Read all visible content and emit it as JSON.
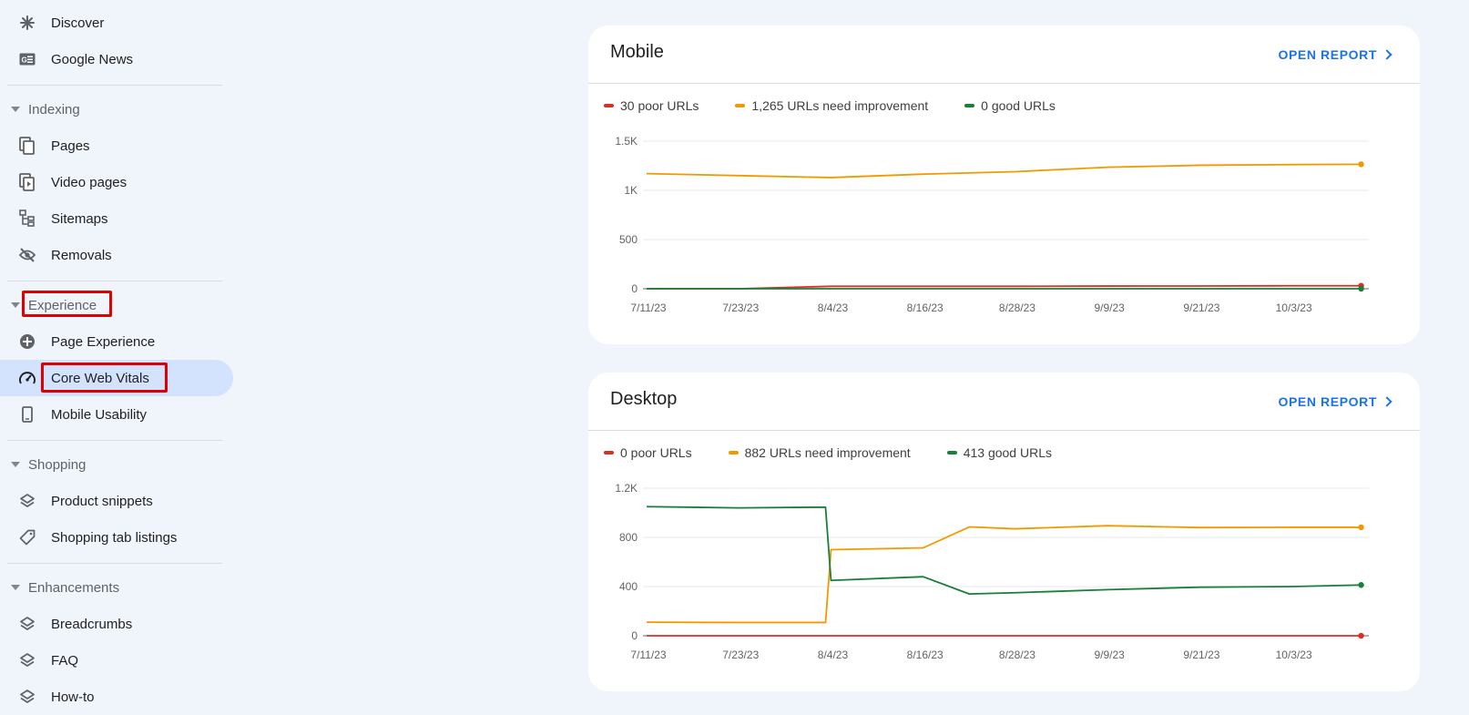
{
  "sidebar": {
    "discover": "Discover",
    "google_news": "Google News",
    "indexing": "Indexing",
    "pages": "Pages",
    "video_pages": "Video pages",
    "sitemaps": "Sitemaps",
    "removals": "Removals",
    "experience": "Experience",
    "page_experience": "Page Experience",
    "core_web_vitals": "Core Web Vitals",
    "mobile_usability": "Mobile Usability",
    "shopping": "Shopping",
    "product_snippets": "Product snippets",
    "shopping_tab_listings": "Shopping tab listings",
    "enhancements": "Enhancements",
    "breadcrumbs": "Breadcrumbs",
    "faq": "FAQ",
    "how_to": "How-to"
  },
  "colors": {
    "poor": "#d93025",
    "improve": "#f29900",
    "good": "#188038",
    "accent": "#1a73e8",
    "highlight": "#e00000"
  },
  "mobile": {
    "title": "Mobile",
    "open_report": "OPEN REPORT",
    "legend": {
      "poor": "30 poor URLs",
      "improve": "1,265 URLs need improvement",
      "good": "0 good URLs"
    }
  },
  "desktop": {
    "title": "Desktop",
    "open_report": "OPEN REPORT",
    "legend": {
      "poor": "0 poor URLs",
      "improve": "882 URLs need improvement",
      "good": "413 good URLs"
    }
  },
  "chart_data": [
    {
      "type": "line",
      "x": [
        "7/11/23",
        "7/23/23",
        "8/4/23",
        "8/16/23",
        "8/28/23",
        "9/9/23",
        "9/21/23",
        "10/3/23",
        "10/12/23"
      ],
      "x_ticks": [
        "7/11/23",
        "7/23/23",
        "8/4/23",
        "8/16/23",
        "8/28/23",
        "9/9/23",
        "9/21/23",
        "10/3/23"
      ],
      "y_ticks": [
        "0",
        "500",
        "1K",
        "1.5K"
      ],
      "ylim": [
        0,
        1500
      ],
      "series": [
        {
          "name": "30 poor URLs",
          "color": "#d93025",
          "values": [
            0,
            0,
            25,
            25,
            25,
            27,
            28,
            30,
            30
          ]
        },
        {
          "name": "1,265 URLs need improvement",
          "color": "#f29900",
          "values": [
            1170,
            1150,
            1130,
            1165,
            1190,
            1235,
            1255,
            1262,
            1265
          ]
        },
        {
          "name": "0 good URLs",
          "color": "#188038",
          "values": [
            0,
            0,
            0,
            0,
            0,
            0,
            0,
            0,
            0
          ]
        }
      ],
      "grid": true
    },
    {
      "type": "line",
      "x": [
        "7/11/23",
        "7/23/23",
        "8/1/23",
        "8/4/23",
        "8/16/23",
        "8/22/23",
        "8/28/23",
        "9/9/23",
        "9/21/23",
        "10/3/23",
        "10/12/23"
      ],
      "x_ticks": [
        "7/11/23",
        "7/23/23",
        "8/4/23",
        "8/16/23",
        "8/28/23",
        "9/9/23",
        "9/21/23",
        "10/3/23"
      ],
      "y_ticks": [
        "0",
        "400",
        "800",
        "1.2K"
      ],
      "ylim": [
        0,
        1200
      ],
      "series": [
        {
          "name": "0 poor URLs",
          "color": "#d93025",
          "values": [
            0,
            0,
            0,
            0,
            0,
            0,
            0,
            0,
            0,
            0,
            0
          ]
        },
        {
          "name": "882 URLs need improvement",
          "color": "#f29900",
          "values": [
            110,
            108,
            108,
            700,
            715,
            885,
            870,
            895,
            880,
            882,
            882
          ]
        },
        {
          "name": "413 good URLs",
          "color": "#188038",
          "values": [
            1050,
            1040,
            1045,
            450,
            480,
            340,
            350,
            375,
            395,
            400,
            413
          ]
        }
      ],
      "grid": true
    }
  ]
}
